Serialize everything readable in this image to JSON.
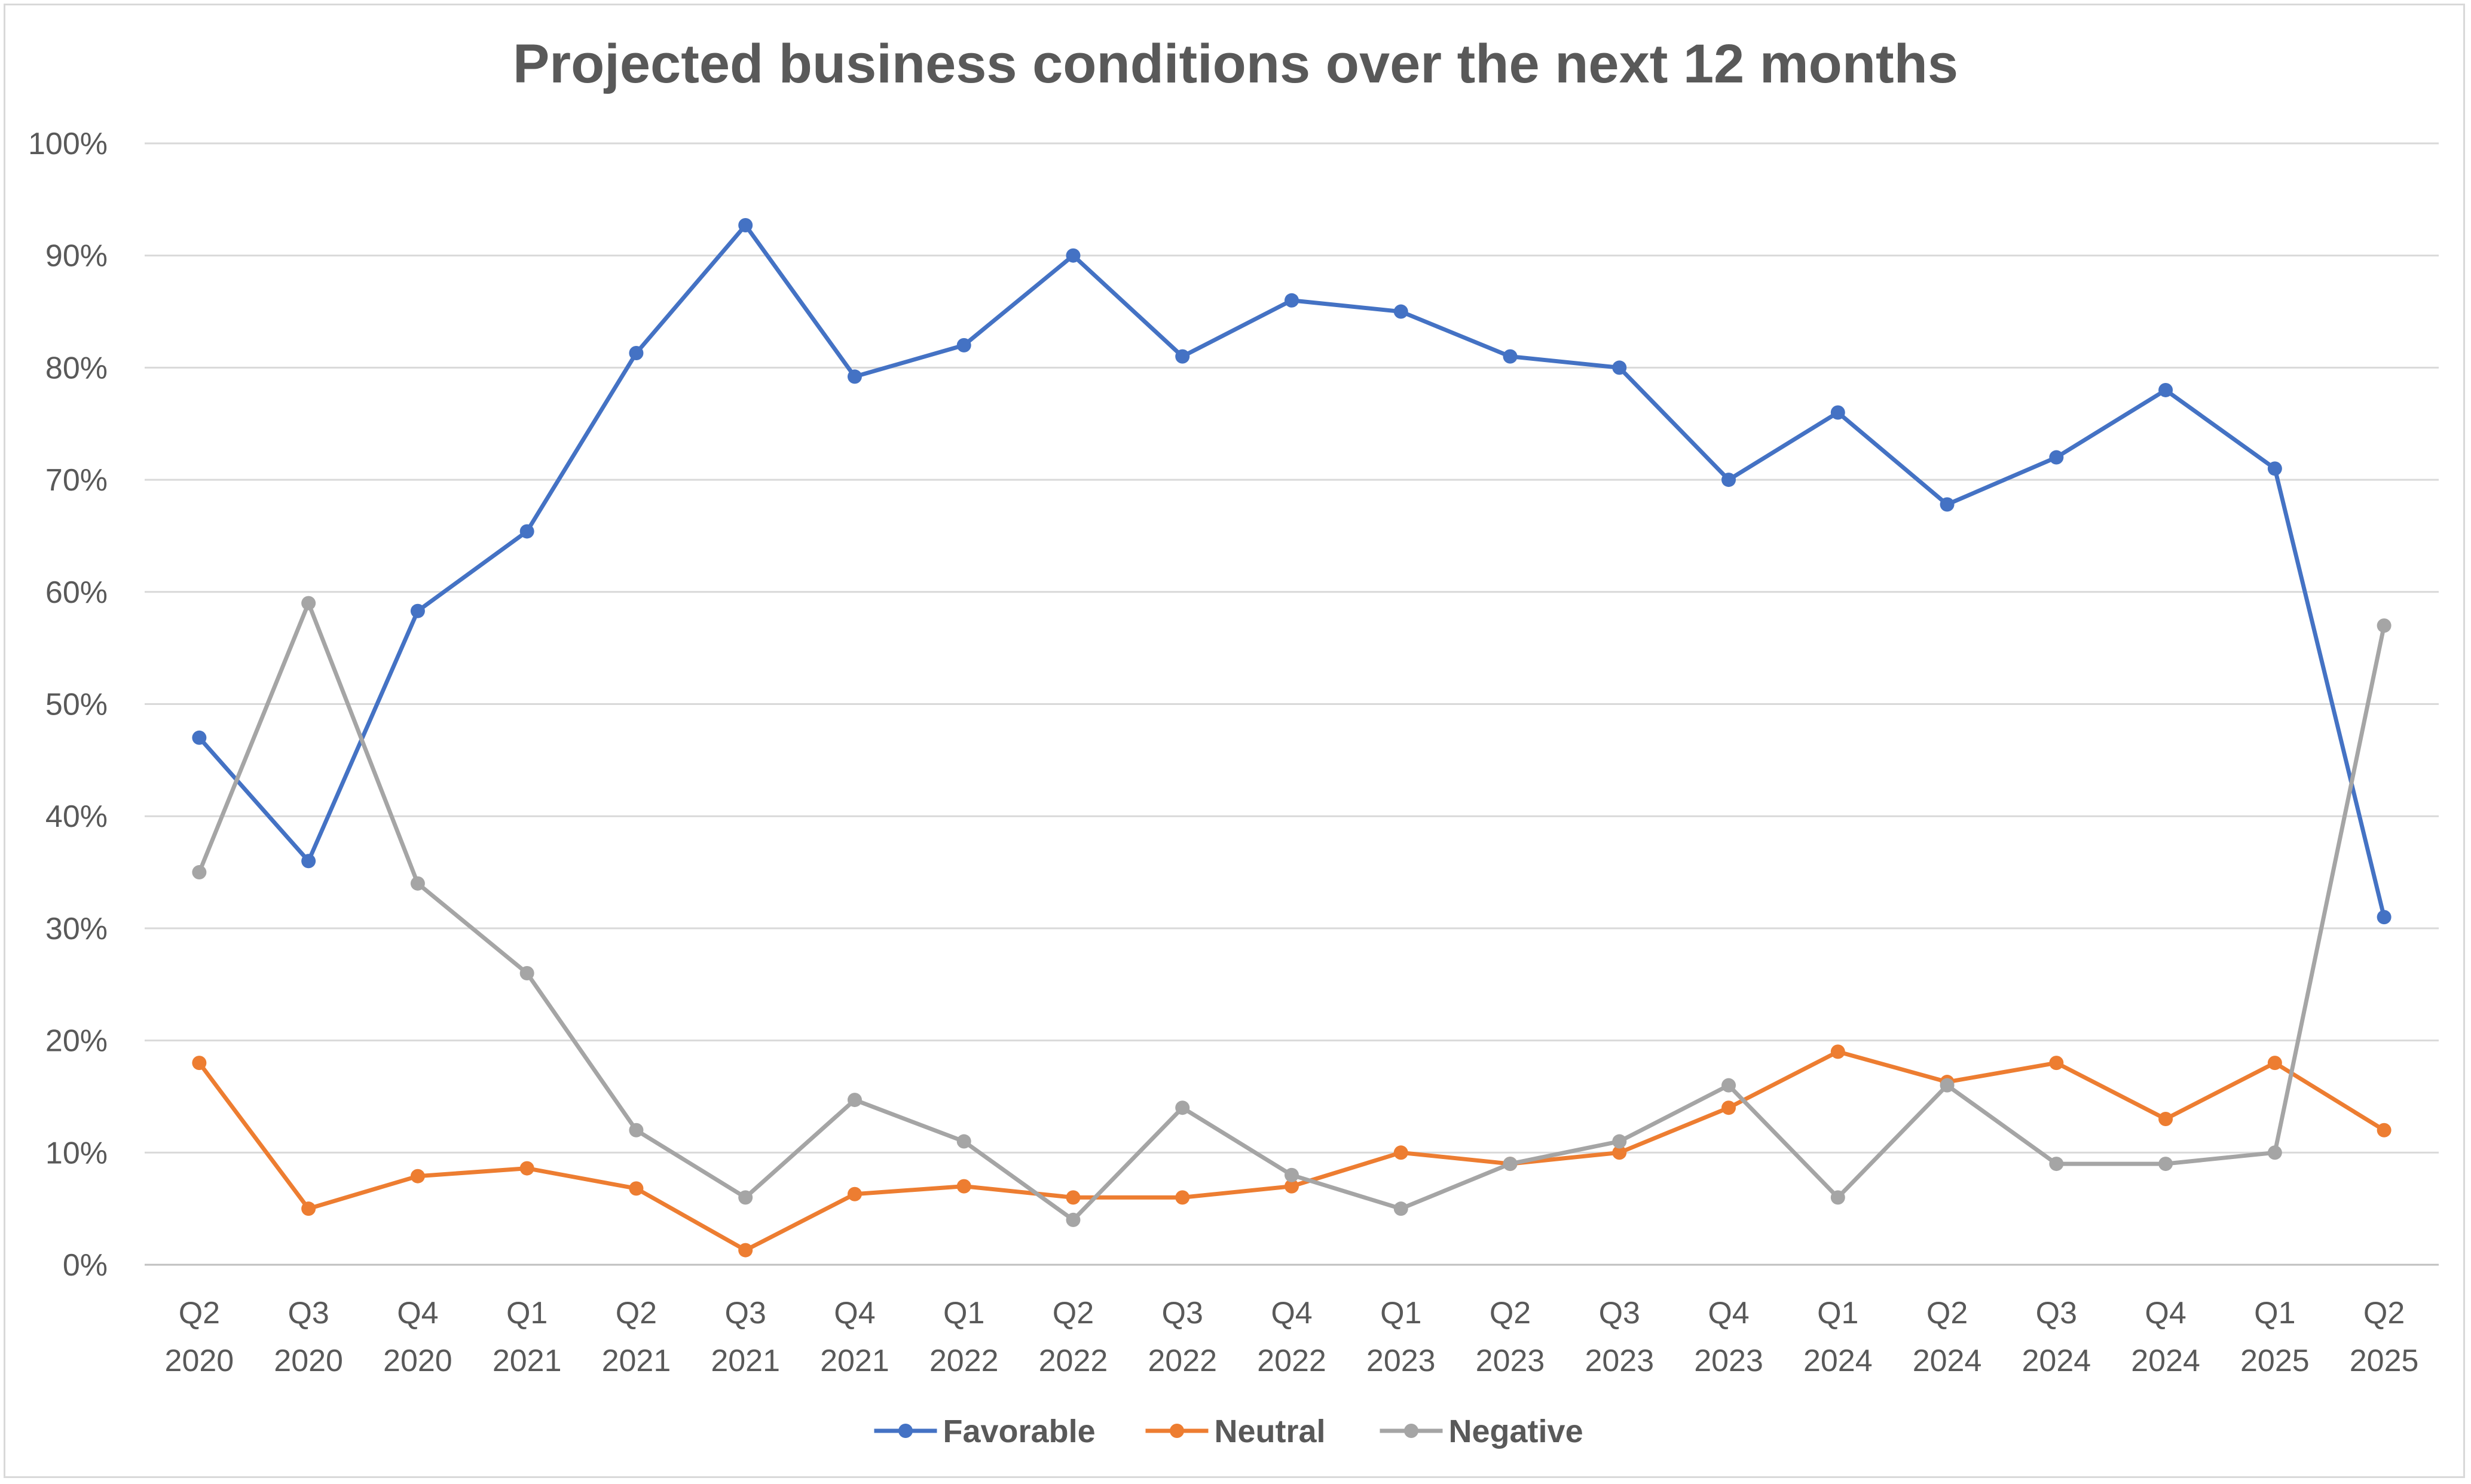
{
  "chart_data": {
    "type": "line",
    "title": "Projected business conditions over the next 12 months",
    "categories": [
      [
        "Q2",
        "2020"
      ],
      [
        "Q3",
        "2020"
      ],
      [
        "Q4",
        "2020"
      ],
      [
        "Q1",
        "2021"
      ],
      [
        "Q2",
        "2021"
      ],
      [
        "Q3",
        "2021"
      ],
      [
        "Q4",
        "2021"
      ],
      [
        "Q1",
        "2022"
      ],
      [
        "Q2",
        "2022"
      ],
      [
        "Q3",
        "2022"
      ],
      [
        "Q4",
        "2022"
      ],
      [
        "Q1",
        "2023"
      ],
      [
        "Q2",
        "2023"
      ],
      [
        "Q3",
        "2023"
      ],
      [
        "Q4",
        "2023"
      ],
      [
        "Q1",
        "2024"
      ],
      [
        "Q2",
        "2024"
      ],
      [
        "Q3",
        "2024"
      ],
      [
        "Q4",
        "2024"
      ],
      [
        "Q1",
        "2025"
      ],
      [
        "Q2",
        "2025"
      ]
    ],
    "y_ticks": [
      "0%",
      "10%",
      "20%",
      "30%",
      "40%",
      "50%",
      "60%",
      "70%",
      "80%",
      "90%",
      "100%"
    ],
    "ylim": [
      0,
      100
    ],
    "grid": true,
    "legend_position": "bottom",
    "series": [
      {
        "name": "Favorable",
        "color": "#4472c4",
        "values": [
          47,
          36,
          58.3,
          65.4,
          81.3,
          92.7,
          79.2,
          82,
          90,
          81,
          86,
          85,
          81,
          80,
          70,
          76,
          67.8,
          72,
          78,
          71,
          31
        ]
      },
      {
        "name": "Neutral",
        "color": "#ed7d31",
        "values": [
          18,
          5,
          7.9,
          8.6,
          6.8,
          1.3,
          6.3,
          7,
          6,
          6,
          7,
          10,
          9,
          10,
          14,
          19,
          16.3,
          18,
          13,
          18,
          12
        ]
      },
      {
        "name": "Negative",
        "color": "#a5a5a5",
        "values": [
          35,
          59,
          34,
          26,
          12,
          6,
          14.7,
          11,
          4,
          14,
          8,
          5,
          9,
          11,
          16,
          6,
          16,
          9,
          9,
          10,
          57
        ]
      }
    ]
  }
}
